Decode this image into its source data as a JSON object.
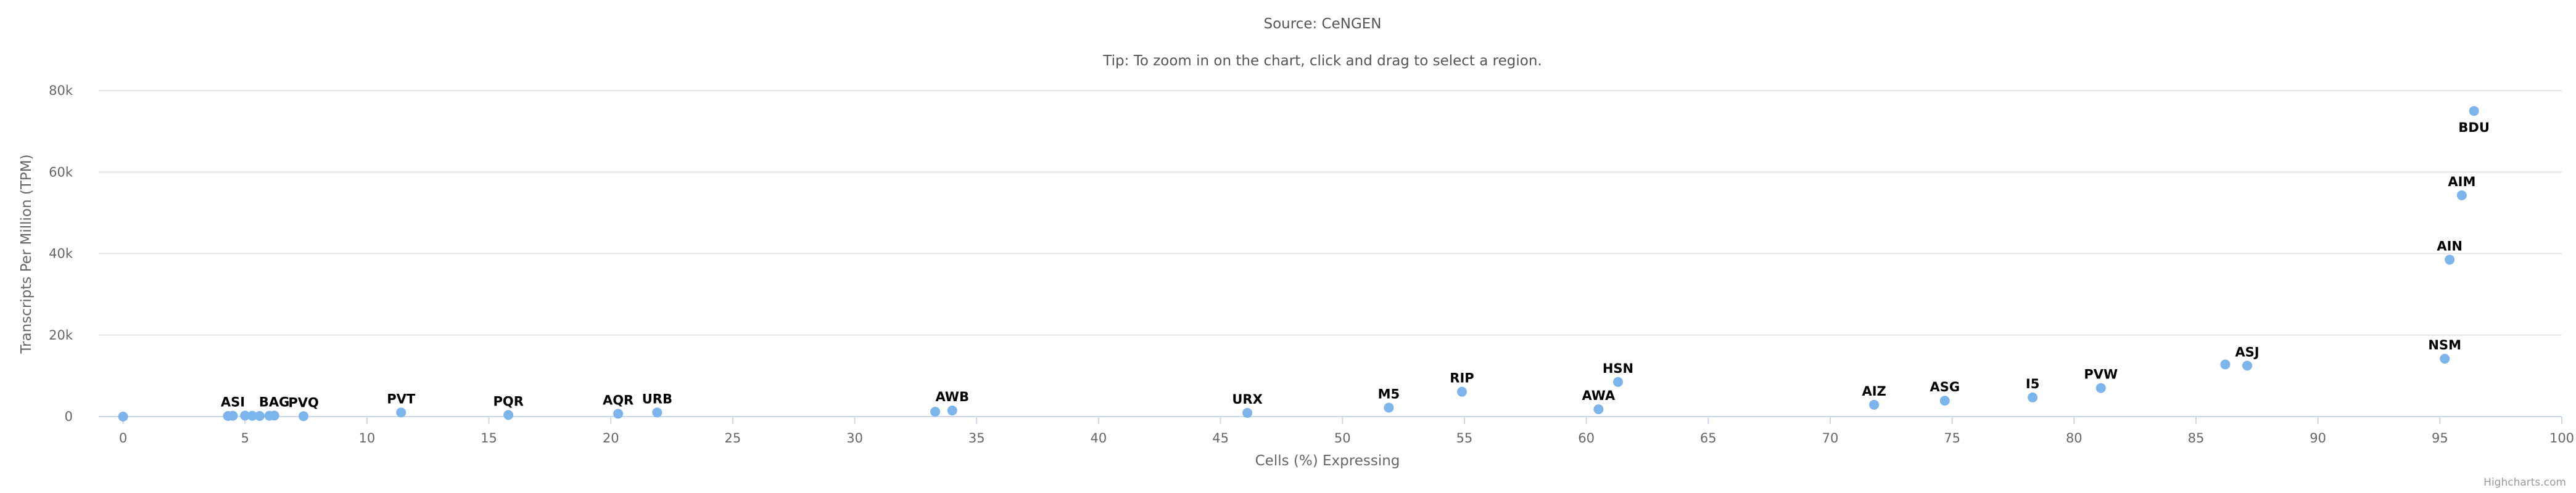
{
  "chart_data": {
    "type": "scatter",
    "title": "",
    "subtitles": [
      "Source: CeNGEN",
      "Tip: To zoom in on the chart, click and drag to select a region."
    ],
    "xlabel": "Cells (%) Expressing",
    "ylabel": "Transcripts Per Million (TPM)",
    "xlim": [
      -1,
      100
    ],
    "ylim": [
      0,
      80000
    ],
    "x_ticks": [
      0,
      5,
      10,
      15,
      20,
      25,
      30,
      35,
      40,
      45,
      50,
      55,
      60,
      65,
      70,
      75,
      80,
      85,
      90,
      95,
      100
    ],
    "x_tick_labels": [
      "0",
      "5",
      "10",
      "15",
      "20",
      "25",
      "30",
      "35",
      "40",
      "45",
      "50",
      "55",
      "60",
      "65",
      "70",
      "75",
      "80",
      "85",
      "90",
      "95",
      "100"
    ],
    "y_ticks": [
      0,
      20000,
      40000,
      60000,
      80000
    ],
    "y_tick_labels": [
      "0",
      "20k",
      "40k",
      "60k",
      "80k"
    ],
    "grid": true,
    "legend": "none",
    "marker_color": "#7cb5ec",
    "points": [
      {
        "x": 0,
        "y": 0,
        "label": ""
      },
      {
        "x": 4.3,
        "y": 150,
        "label": ""
      },
      {
        "x": 4.5,
        "y": 200,
        "label": "ASI"
      },
      {
        "x": 5.0,
        "y": 250,
        "label": ""
      },
      {
        "x": 5.3,
        "y": 200,
        "label": ""
      },
      {
        "x": 5.6,
        "y": 150,
        "label": ""
      },
      {
        "x": 6.0,
        "y": 200,
        "label": ""
      },
      {
        "x": 6.2,
        "y": 250,
        "label": "BAG"
      },
      {
        "x": 7.4,
        "y": 100,
        "label": "PVQ"
      },
      {
        "x": 11.4,
        "y": 1000,
        "label": "PVT"
      },
      {
        "x": 15.8,
        "y": 400,
        "label": "PQR"
      },
      {
        "x": 20.3,
        "y": 700,
        "label": "AQR"
      },
      {
        "x": 21.9,
        "y": 1000,
        "label": "URB"
      },
      {
        "x": 33.3,
        "y": 1200,
        "label": ""
      },
      {
        "x": 34.0,
        "y": 1500,
        "label": "AWB"
      },
      {
        "x": 46.1,
        "y": 900,
        "label": "URX"
      },
      {
        "x": 51.9,
        "y": 2200,
        "label": "M5"
      },
      {
        "x": 54.9,
        "y": 6100,
        "label": "RIP"
      },
      {
        "x": 60.5,
        "y": 1800,
        "label": "AWA"
      },
      {
        "x": 61.3,
        "y": 8500,
        "label": "HSN"
      },
      {
        "x": 71.8,
        "y": 2900,
        "label": "AIZ"
      },
      {
        "x": 74.7,
        "y": 3900,
        "label": "ASG"
      },
      {
        "x": 78.3,
        "y": 4700,
        "label": "I5"
      },
      {
        "x": 81.1,
        "y": 7000,
        "label": "PVW"
      },
      {
        "x": 86.2,
        "y": 12800,
        "label": ""
      },
      {
        "x": 87.1,
        "y": 12500,
        "label": "ASJ"
      },
      {
        "x": 95.2,
        "y": 14200,
        "label": "NSM"
      },
      {
        "x": 95.4,
        "y": 38500,
        "label": "AIN"
      },
      {
        "x": 95.9,
        "y": 54300,
        "label": "AIM"
      },
      {
        "x": 96.4,
        "y": 75000,
        "label": "BDU"
      }
    ]
  },
  "credits": "Highcharts.com"
}
